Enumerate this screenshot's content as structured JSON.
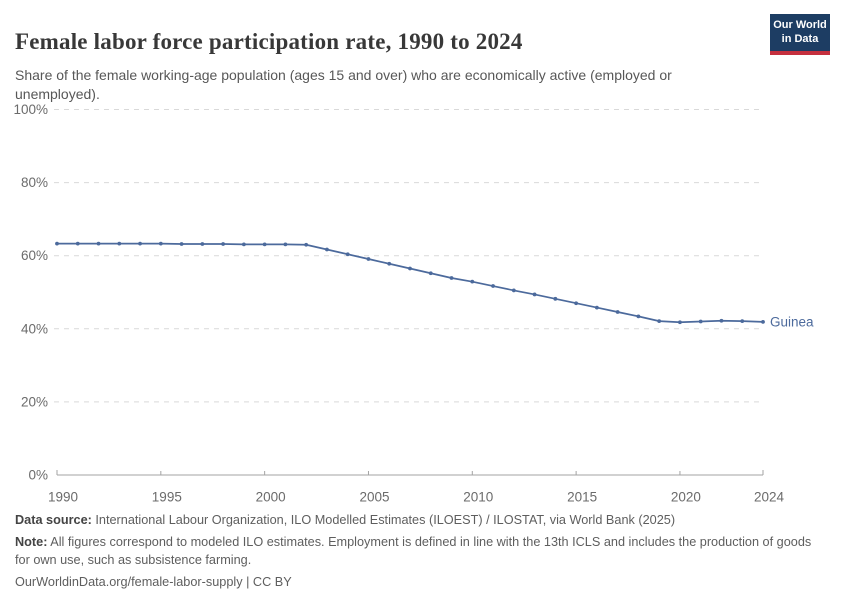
{
  "header": {
    "title": "Female labor force participation rate, 1990 to 2024",
    "subtitle": "Share of the female working-age population (ages 15 and over) who are economically active (employed or unemployed).",
    "logo": {
      "line1": "Our World",
      "line2": "in Data",
      "bg_color": "#1d3d63",
      "accent_color": "#c5303e"
    }
  },
  "chart_data": {
    "type": "line",
    "title": "Female labor force participation rate, 1990 to 2024",
    "xlabel": "",
    "ylabel": "",
    "xlim": [
      1990,
      2024
    ],
    "ylim": [
      0,
      100
    ],
    "grid": "horizontal-dashed",
    "legend_position": "end-of-line-label",
    "x_ticks": [
      1990,
      1995,
      2000,
      2005,
      2010,
      2015,
      2020,
      2024
    ],
    "y_tick_values": [
      0,
      20,
      40,
      60,
      80,
      100
    ],
    "y_tick_labels": [
      "0%",
      "20%",
      "40%",
      "60%",
      "80%",
      "100%"
    ],
    "series": [
      {
        "name": "Guinea",
        "color": "#4C6A9C",
        "x": [
          1990,
          1991,
          1992,
          1993,
          1994,
          1995,
          1996,
          1997,
          1998,
          1999,
          2000,
          2001,
          2002,
          2003,
          2004,
          2005,
          2006,
          2007,
          2008,
          2009,
          2010,
          2011,
          2012,
          2013,
          2014,
          2015,
          2016,
          2017,
          2018,
          2019,
          2020,
          2021,
          2022,
          2023,
          2024
        ],
        "values": [
          63.3,
          63.3,
          63.3,
          63.3,
          63.3,
          63.3,
          63.2,
          63.2,
          63.2,
          63.1,
          63.1,
          63.1,
          63.0,
          61.7,
          60.4,
          59.1,
          57.8,
          56.5,
          55.2,
          53.9,
          52.9,
          51.7,
          50.5,
          49.4,
          48.2,
          47.0,
          45.8,
          44.6,
          43.4,
          42.1,
          41.8,
          42.0,
          42.2,
          42.1,
          41.9
        ]
      }
    ],
    "colors": {
      "gridline": "#d9d9d9",
      "axis": "#a3a3a3",
      "tick_label": "#6b6b6b"
    }
  },
  "footer": {
    "data_source_label": "Data source:",
    "data_source": "International Labour Organization, ILO Modelled Estimates (ILOEST) / ILOSTAT, via World Bank (2025)",
    "note_label": "Note:",
    "note": "All figures correspond to modeled ILO estimates. Employment is defined in line with the 13th ICLS and includes the production of goods for own use, such as subsistence farming.",
    "url": "OurWorldinData.org/female-labor-supply",
    "separator": "|",
    "license": "CC BY"
  }
}
